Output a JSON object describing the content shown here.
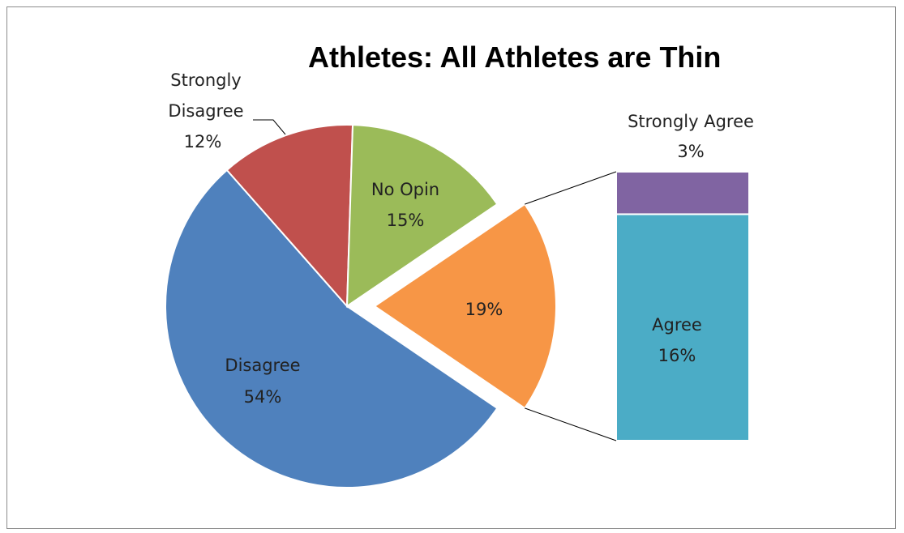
{
  "chart_data": {
    "type": "pie",
    "title": "Athletes: All Athletes are Thin",
    "slices": [
      {
        "name": "Disagree",
        "value": 54,
        "label": "54%",
        "color": "#4f81bd"
      },
      {
        "name": "Strongly Disagree",
        "value": 12,
        "label": "12%",
        "color": "#c0504d"
      },
      {
        "name": "No Opin",
        "value": 15,
        "label": "15%",
        "color": "#9bbb59"
      },
      {
        "name": "",
        "value": 19,
        "label": "19%",
        "color": "#f79646",
        "exploded": true
      }
    ],
    "breakdown": {
      "type": "stacked_bar",
      "of_slice_label": "19%",
      "segments": [
        {
          "name": "Agree",
          "value": 16,
          "label": "16%",
          "color": "#4bacc6"
        },
        {
          "name": "Strongly Agree",
          "value": 3,
          "label": "3%",
          "color": "#8064a2"
        }
      ]
    },
    "labels": {
      "disagree_name": "Disagree",
      "disagree_pct": "54%",
      "sd_line1": "Strongly",
      "sd_line2": "Disagree",
      "sd_pct": "12%",
      "noopin_name": "No Opin",
      "noopin_pct": "15%",
      "orange_pct": "19%",
      "agree_name": "Agree",
      "agree_pct": "16%",
      "sa_name": "Strongly Agree",
      "sa_pct": "3%"
    }
  }
}
